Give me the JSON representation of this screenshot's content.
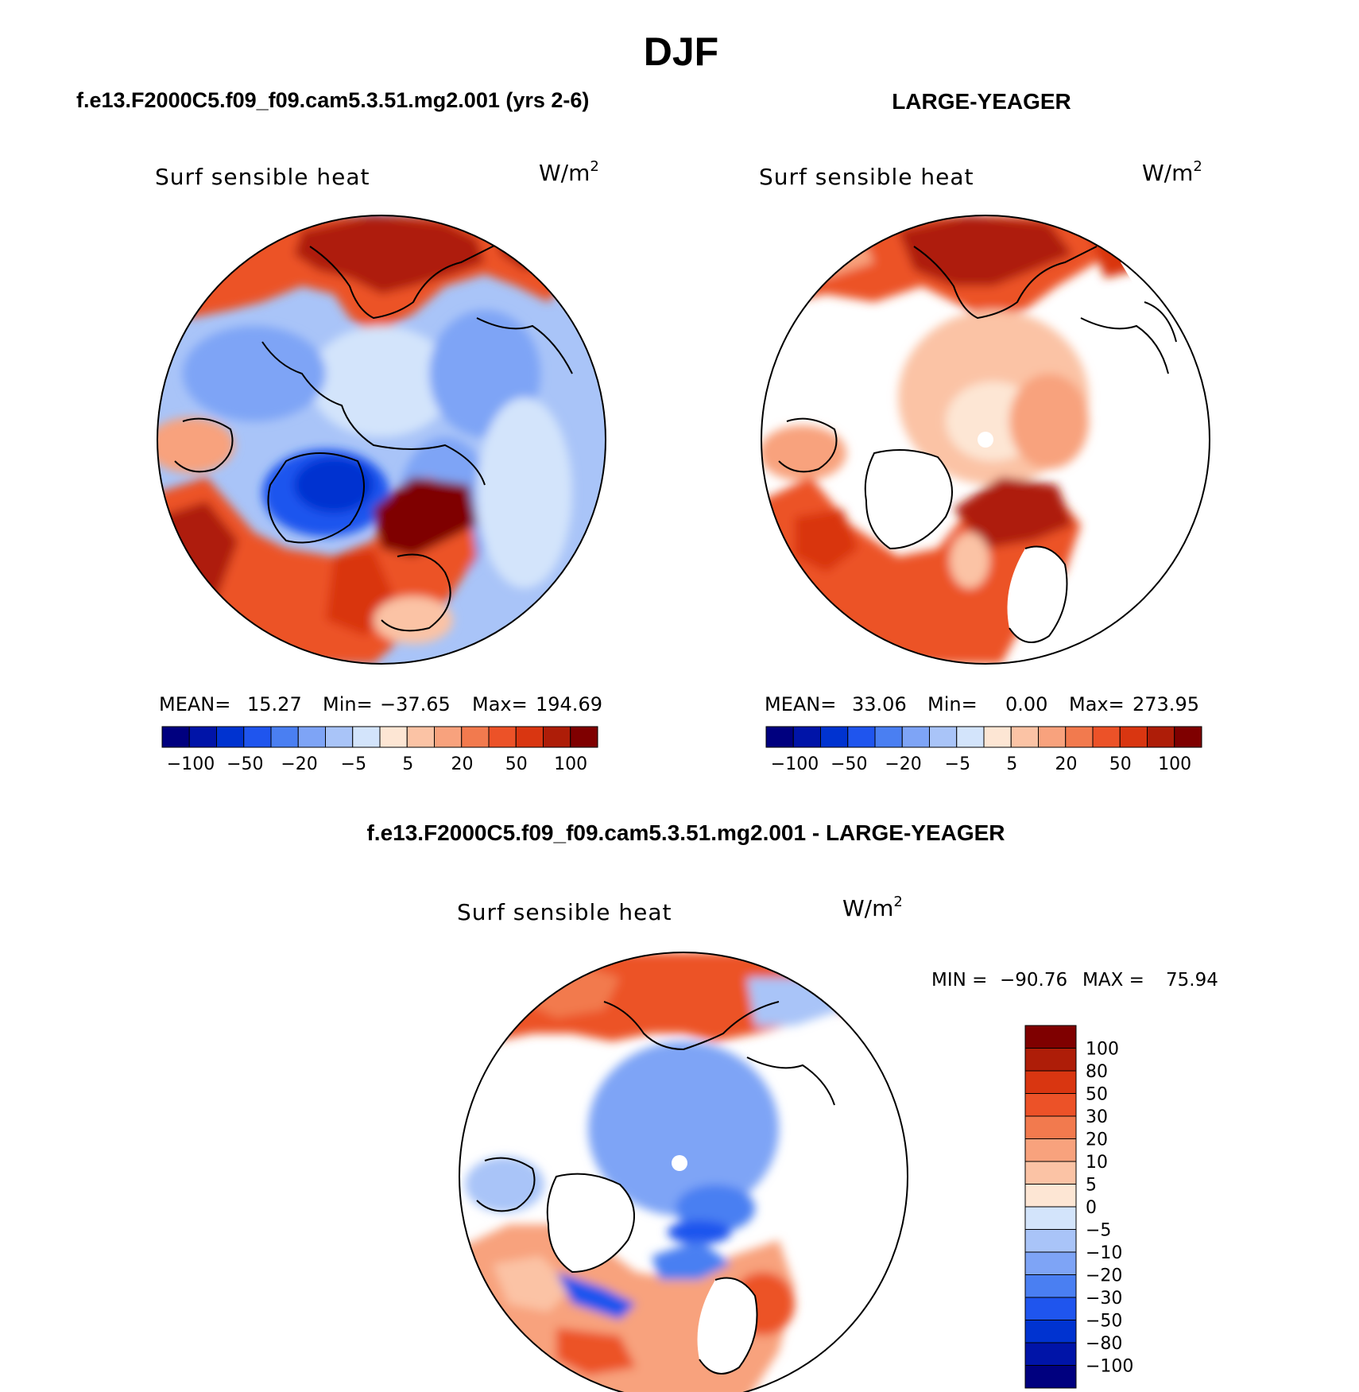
{
  "figure": {
    "title": "DJF",
    "colors": {
      "diverging": [
        "#00007f",
        "#0014a8",
        "#0033d0",
        "#1f55ee",
        "#4a7ff2",
        "#7ea4f6",
        "#a9c4f8",
        "#d3e4fb",
        "#fde6d4",
        "#fbc3a5",
        "#f8a27d",
        "#f27a4e",
        "#ec5228",
        "#d93611",
        "#ae1d08",
        "#7f0000"
      ]
    }
  },
  "panels": [
    {
      "title": "f.e13.F2000C5.f09_f09.cam5.3.51.mg2.001 (yrs 2-6)",
      "var_label": "Surf sensible heat",
      "units": "W/m",
      "units_sup": "2",
      "stats": {
        "mean_label": "MEAN=",
        "mean": "15.27",
        "min_label": "Min=",
        "min": "−37.65",
        "max_label": "Max=",
        "max": "194.69"
      },
      "colorbar_ticks": [
        "−100",
        "−50",
        "−20",
        "−5",
        "5",
        "20",
        "50",
        "100"
      ]
    },
    {
      "title": "LARGE-YEAGER",
      "var_label": "Surf sensible heat",
      "units": "W/m",
      "units_sup": "2",
      "stats": {
        "mean_label": "MEAN=",
        "mean": "33.06",
        "min_label": "Min=",
        "min": "0.00",
        "max_label": "Max=",
        "max": "273.95"
      },
      "colorbar_ticks": [
        "−100",
        "−50",
        "−20",
        "−5",
        "5",
        "20",
        "50",
        "100"
      ]
    },
    {
      "title": "f.e13.F2000C5.f09_f09.cam5.3.51.mg2.001 - LARGE-YEAGER",
      "var_label": "Surf sensible heat",
      "units": "W/m",
      "units_sup": "2",
      "stats": {
        "min_label": "MIN =",
        "min": "−90.76",
        "max_label": "MAX =",
        "max": "75.94"
      },
      "colorbar_ticks": [
        "100",
        "80",
        "50",
        "30",
        "20",
        "10",
        "5",
        "0",
        "−5",
        "−10",
        "−20",
        "−30",
        "−50",
        "−80",
        "−100"
      ]
    }
  ]
}
